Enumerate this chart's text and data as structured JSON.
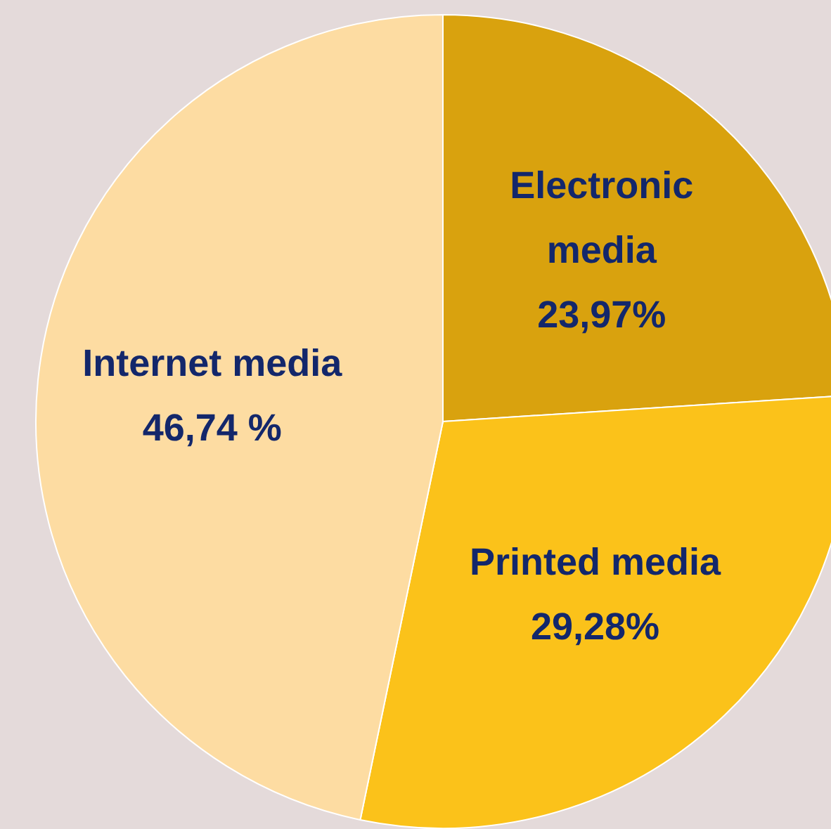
{
  "chart_data": {
    "type": "pie",
    "categories": [
      "Electronic media",
      "Printed media",
      "Internet media"
    ],
    "values": [
      23.97,
      29.28,
      46.74
    ],
    "colors": [
      "#d9a20e",
      "#fbc21a",
      "#fddca2"
    ],
    "value_labels": [
      "23,97%",
      "29,28%",
      "46,74 %"
    ],
    "legend": false
  }
}
